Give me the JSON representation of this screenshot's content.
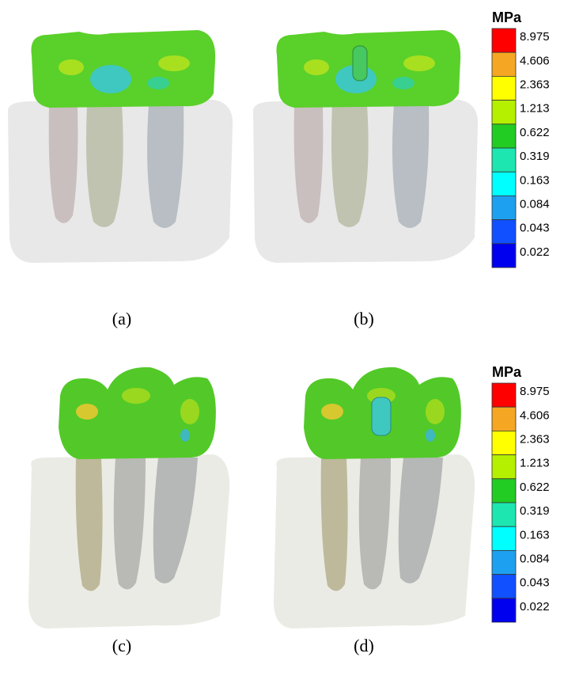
{
  "panels": [
    {
      "label": "(a)"
    },
    {
      "label": "(b)"
    },
    {
      "label": "(c)"
    },
    {
      "label": "(d)"
    }
  ],
  "legends": [
    {
      "unit": "MPa",
      "levels": [
        {
          "label": "8.975",
          "color": "#ff0000"
        },
        {
          "label": "4.606",
          "color": "#f5a623"
        },
        {
          "label": "2.363",
          "color": "#ffff00"
        },
        {
          "label": "1.213",
          "color": "#b4f000"
        },
        {
          "label": "0.622",
          "color": "#22cc22"
        },
        {
          "label": "0.319",
          "color": "#1de6b0"
        },
        {
          "label": "0.163",
          "color": "#00ffff"
        },
        {
          "label": "0.084",
          "color": "#1ea0f0"
        },
        {
          "label": "0.043",
          "color": "#1050ff"
        },
        {
          "label": "0.022",
          "color": "#0000ee"
        }
      ]
    },
    {
      "unit": "MPa",
      "levels": [
        {
          "label": "8.975",
          "color": "#ff0000"
        },
        {
          "label": "4.606",
          "color": "#f5a623"
        },
        {
          "label": "2.363",
          "color": "#ffff00"
        },
        {
          "label": "1.213",
          "color": "#b4f000"
        },
        {
          "label": "0.622",
          "color": "#22cc22"
        },
        {
          "label": "0.319",
          "color": "#1de6b0"
        },
        {
          "label": "0.163",
          "color": "#00ffff"
        },
        {
          "label": "0.084",
          "color": "#1ea0f0"
        },
        {
          "label": "0.043",
          "color": "#1050ff"
        },
        {
          "label": "0.022",
          "color": "#0000ee"
        }
      ]
    }
  ]
}
